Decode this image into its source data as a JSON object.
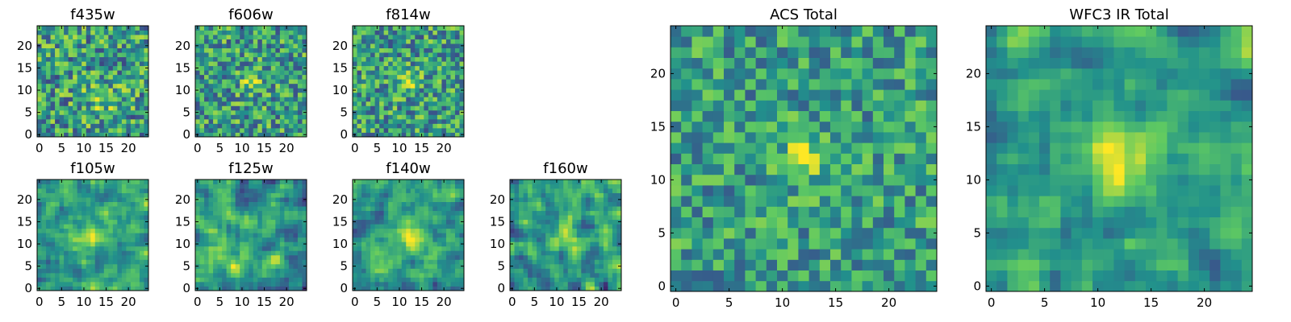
{
  "chart_data": {
    "type": "heatmap",
    "colormap": [
      "#440154",
      "#3b528b",
      "#21918c",
      "#5ec962",
      "#fde725"
    ],
    "panels": [
      {
        "title": "f435w",
        "xticks": [
          "0",
          "5",
          "10",
          "15",
          "20"
        ],
        "yticks": [
          "0",
          "5",
          "10",
          "15",
          "20"
        ],
        "xlim": [
          -0.5,
          24.5
        ],
        "ylim": [
          -0.5,
          24.5
        ],
        "grid_size": 25,
        "blob": {
          "x": 14,
          "y": 8,
          "sigma": 3.0,
          "amp": 0.15
        },
        "noise": 0.34,
        "seed": 11
      },
      {
        "title": "f606w",
        "xticks": [
          "0",
          "5",
          "10",
          "15",
          "20"
        ],
        "yticks": [
          "0",
          "5",
          "10",
          "15",
          "20"
        ],
        "xlim": [
          -0.5,
          24.5
        ],
        "ylim": [
          -0.5,
          24.5
        ],
        "grid_size": 25,
        "blob": {
          "x": 12,
          "y": 12,
          "sigma": 1.6,
          "amp": 0.35
        },
        "noise": 0.32,
        "seed": 23
      },
      {
        "title": "f814w",
        "xticks": [
          "0",
          "5",
          "10",
          "15",
          "20"
        ],
        "yticks": [
          "0",
          "5",
          "10",
          "15",
          "20"
        ],
        "xlim": [
          -0.5,
          24.5
        ],
        "ylim": [
          -0.5,
          24.5
        ],
        "grid_size": 25,
        "blob": {
          "x": 12,
          "y": 12,
          "sigma": 1.6,
          "amp": 0.38
        },
        "noise": 0.32,
        "seed": 37
      },
      {
        "title": "f105w",
        "xticks": [
          "0",
          "5",
          "10",
          "15",
          "20"
        ],
        "yticks": [
          "0",
          "5",
          "10",
          "15",
          "20"
        ],
        "xlim": [
          -0.5,
          24.5
        ],
        "ylim": [
          -0.5,
          24.5
        ],
        "grid_size": 25,
        "blob": {
          "x": 12,
          "y": 12,
          "sigma": 2.8,
          "amp": 0.3
        },
        "noise": 0.22,
        "seed": 41,
        "smooth": true
      },
      {
        "title": "f125w",
        "xticks": [
          "0",
          "5",
          "10",
          "15",
          "20"
        ],
        "yticks": [
          "0",
          "5",
          "10",
          "15",
          "20"
        ],
        "xlim": [
          -0.5,
          24.5
        ],
        "ylim": [
          -0.5,
          24.5
        ],
        "grid_size": 25,
        "blob": {
          "x": 9,
          "y": 6,
          "sigma": 1.8,
          "amp": 0.3
        },
        "noise": 0.24,
        "seed": 53,
        "smooth": true
      },
      {
        "title": "f140w",
        "xticks": [
          "0",
          "5",
          "10",
          "15",
          "20"
        ],
        "yticks": [
          "0",
          "5",
          "10",
          "15",
          "20"
        ],
        "xlim": [
          -0.5,
          24.5
        ],
        "ylim": [
          -0.5,
          24.5
        ],
        "grid_size": 25,
        "blob": {
          "x": 12,
          "y": 12,
          "sigma": 3.0,
          "amp": 0.32
        },
        "noise": 0.22,
        "seed": 67,
        "smooth": true
      },
      {
        "title": "f160w",
        "xticks": [
          "0",
          "5",
          "10",
          "15",
          "20"
        ],
        "yticks": [
          "0",
          "5",
          "10",
          "15",
          "20"
        ],
        "xlim": [
          -0.5,
          24.5
        ],
        "ylim": [
          -0.5,
          24.5
        ],
        "grid_size": 25,
        "blob": {
          "x": 12,
          "y": 12,
          "sigma": 2.6,
          "amp": 0.3
        },
        "noise": 0.26,
        "seed": 79,
        "smooth": true
      },
      {
        "title": "ACS Total",
        "xticks": [
          "0",
          "5",
          "10",
          "15",
          "20"
        ],
        "yticks": [
          "0",
          "5",
          "10",
          "15",
          "20"
        ],
        "xlim": [
          -0.5,
          24.5
        ],
        "ylim": [
          -0.5,
          24.5
        ],
        "grid_size": 25,
        "blob": {
          "x": 12,
          "y": 12,
          "sigma": 1.4,
          "amp": 0.42
        },
        "noise": 0.26,
        "seed": 97
      },
      {
        "title": "WFC3 IR Total",
        "xticks": [
          "0",
          "5",
          "10",
          "15",
          "20"
        ],
        "yticks": [
          "0",
          "5",
          "10",
          "15",
          "20"
        ],
        "xlim": [
          -0.5,
          24.5
        ],
        "ylim": [
          -0.5,
          24.5
        ],
        "grid_size": 25,
        "blob": {
          "x": 12,
          "y": 12,
          "sigma": 2.2,
          "amp": 0.4
        },
        "noise": 0.2,
        "seed": 113,
        "smooth": true
      }
    ]
  }
}
